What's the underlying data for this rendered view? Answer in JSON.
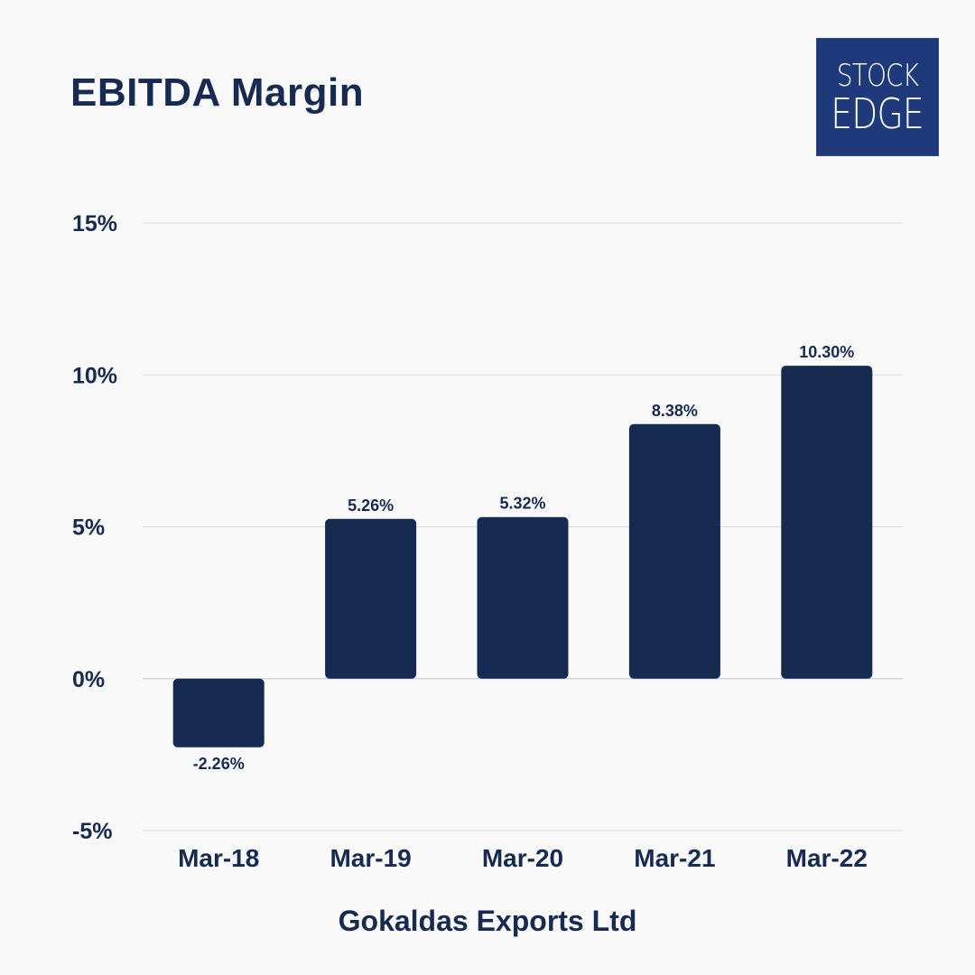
{
  "title": "EBITDA Margin",
  "logo": {
    "line1": "STOCK",
    "line2": "EDGE"
  },
  "company": "Gokaldas Exports Ltd",
  "colors": {
    "bar": "#172a52",
    "grid": "#d9dde3",
    "text": "#172a52",
    "logo_bg": "#1f3a7a"
  },
  "chart_data": {
    "type": "bar",
    "title": "EBITDA Margin",
    "xlabel": "Gokaldas Exports Ltd",
    "ylabel": "",
    "categories": [
      "Mar-18",
      "Mar-19",
      "Mar-20",
      "Mar-21",
      "Mar-22"
    ],
    "values": [
      -2.26,
      5.26,
      5.32,
      8.38,
      10.3
    ],
    "value_labels": [
      "-2.26%",
      "5.26%",
      "5.32%",
      "8.38%",
      "10.30%"
    ],
    "ylim": [
      -5,
      15
    ],
    "yticks": [
      15,
      10,
      5,
      0,
      -5
    ],
    "ytick_labels": [
      "15%",
      "10%",
      "5%",
      "0%",
      "-5%"
    ],
    "grid": true
  }
}
